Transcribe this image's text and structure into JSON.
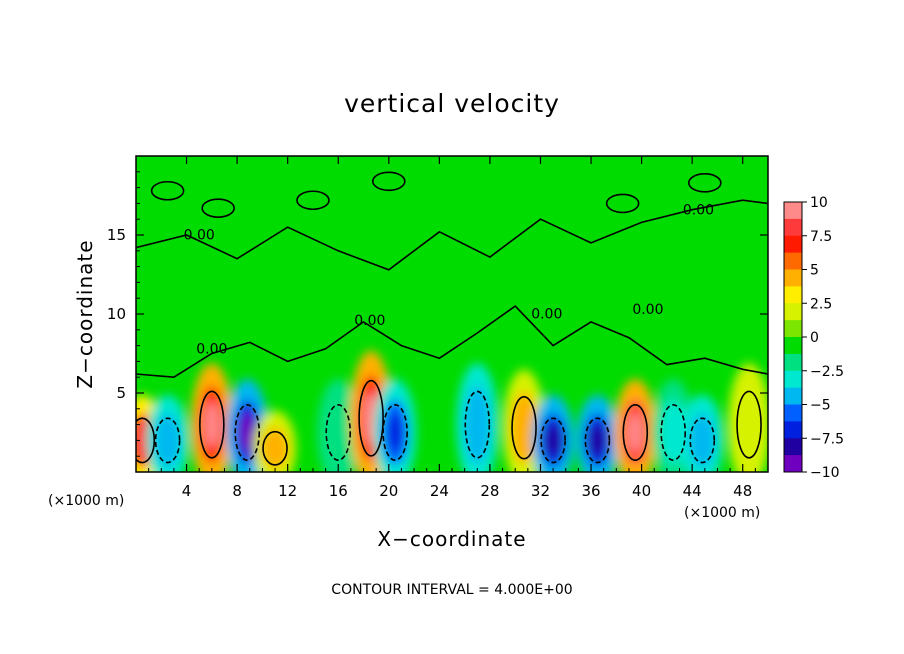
{
  "chart_data": {
    "type": "heatmap",
    "title": "vertical velocity",
    "xlabel": "X−coordinate",
    "ylabel": "Z−coordinate",
    "x_unit_left": "(×1000 m)",
    "x_unit_right": "(×1000 m)",
    "note": "CONTOUR INTERVAL = 4.000E+00",
    "contour_label": "0.00",
    "xlim": [
      0,
      50
    ],
    "ylim": [
      0,
      20
    ],
    "xticks": [
      4,
      8,
      12,
      16,
      20,
      24,
      28,
      32,
      36,
      40,
      44,
      48
    ],
    "xtick_labels": [
      "4",
      "8",
      "12",
      "16",
      "20",
      "24",
      "28",
      "32",
      "36",
      "40",
      "44",
      "48"
    ],
    "yticks": [
      5,
      10,
      15
    ],
    "ytick_labels": [
      "5",
      "10",
      "15"
    ],
    "colorbar": {
      "levels": [
        10,
        7.5,
        5,
        2.5,
        0,
        -2.5,
        -5,
        -7.5,
        -10
      ],
      "labels": [
        "10",
        "7.5",
        "5",
        "2.5",
        "0",
        "−2.5",
        "−5",
        "−7.5",
        "−10"
      ],
      "colors": [
        "#ff8a8a",
        "#ff3a3a",
        "#ff1a00",
        "#ff6a00",
        "#ffb000",
        "#ffee00",
        "#d6f200",
        "#7ce600",
        "#00dc00",
        "#00e080",
        "#00e8d0",
        "#00b8f0",
        "#0060ff",
        "#0020e0",
        "#2000a0",
        "#7000c0"
      ]
    },
    "cells": [
      {
        "x": 0.5,
        "z": 2.0,
        "value": 8.0
      },
      {
        "x": 2.5,
        "z": 2.0,
        "value": -5.5
      },
      {
        "x": 6.0,
        "z": 3.0,
        "value": 9.0
      },
      {
        "x": 8.8,
        "z": 2.5,
        "value": -9.0
      },
      {
        "x": 11.0,
        "z": 1.5,
        "value": 5.5
      },
      {
        "x": 16.0,
        "z": 2.5,
        "value": -3.0
      },
      {
        "x": 18.6,
        "z": 3.4,
        "value": 9.0
      },
      {
        "x": 20.5,
        "z": 2.5,
        "value": -7.0
      },
      {
        "x": 27.0,
        "z": 3.0,
        "value": -5.0
      },
      {
        "x": 30.7,
        "z": 2.8,
        "value": 5.5
      },
      {
        "x": 33.0,
        "z": 2.0,
        "value": -8.0
      },
      {
        "x": 36.5,
        "z": 2.0,
        "value": -8.0
      },
      {
        "x": 39.5,
        "z": 2.5,
        "value": 10.0
      },
      {
        "x": 42.5,
        "z": 2.5,
        "value": -4.0
      },
      {
        "x": 44.8,
        "z": 2.0,
        "value": -5.0
      },
      {
        "x": 48.5,
        "z": 3.0,
        "value": 3.0
      }
    ]
  }
}
